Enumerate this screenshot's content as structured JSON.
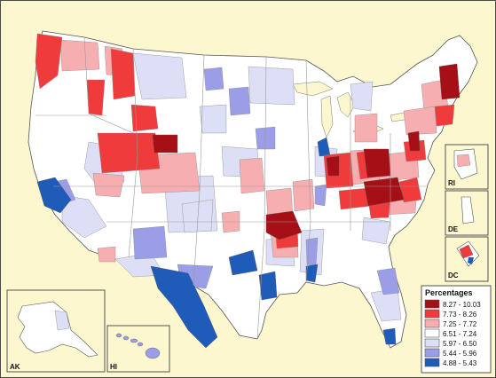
{
  "map": {
    "legend": {
      "title": "Percentages",
      "entries": [
        {
          "label": "8.27 - 10.03",
          "color": "#a50f15"
        },
        {
          "label": "7.73 - 8.26",
          "color": "#ef3b3b"
        },
        {
          "label": "7.25 - 7.72",
          "color": "#f7aeb0"
        },
        {
          "label": "6.51 - 7.24",
          "color": "#ffffff"
        },
        {
          "label": "5.97 - 6.50",
          "color": "#dcdff5"
        },
        {
          "label": "5.44 - 5.96",
          "color": "#9b9ee6"
        },
        {
          "label": "4.88 - 5.43",
          "color": "#1f5bb8"
        }
      ]
    },
    "insets": {
      "ak": "AK",
      "hi": "HI",
      "ri": "RI",
      "de": "DE",
      "dc": "DC"
    },
    "colors": {
      "background": "#fcf7cf",
      "border": "#4a4a4a",
      "state_line": "#9a9a9a",
      "region_line": "#8a8a8a"
    }
  }
}
